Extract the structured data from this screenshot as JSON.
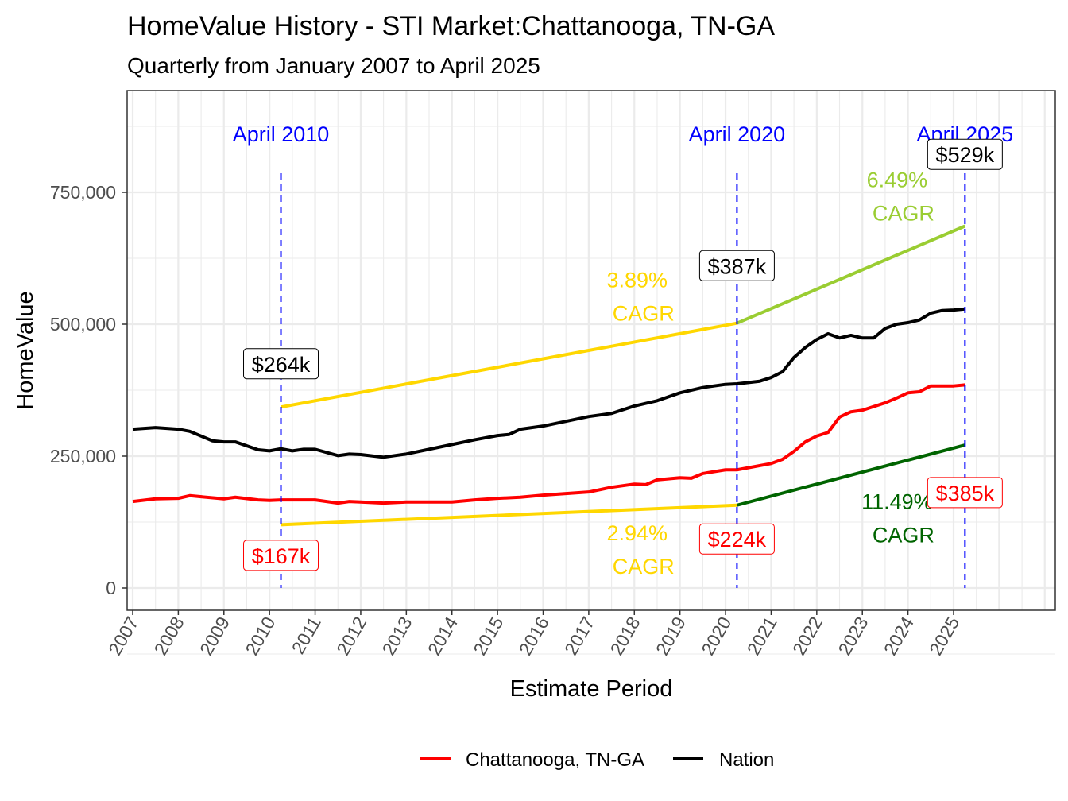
{
  "chart_data": {
    "type": "line",
    "title": "HomeValue History - STI Market:Chattanooga, TN-GA",
    "subtitle": "Quarterly from January 2007 to April 2025",
    "xlabel": "Estimate Period",
    "ylabel": "HomeValue",
    "xlim": [
      2007,
      2027.2
    ],
    "ylim": [
      -40000,
      940000
    ],
    "x_ticks": [
      "2007",
      "2008",
      "2009",
      "2010",
      "2011",
      "2012",
      "2013",
      "2014",
      "2015",
      "2016",
      "2017",
      "2018",
      "2019",
      "2020",
      "2021",
      "2022",
      "2023",
      "2024",
      "2025"
    ],
    "y_ticks": [
      0,
      250000,
      500000,
      750000
    ],
    "y_tick_labels": [
      "0",
      "250,000",
      "500,000",
      "750,000"
    ],
    "grid": true,
    "legend_position": "bottom",
    "series": [
      {
        "name": "Chattanooga, TN-GA",
        "color": "#ff0000",
        "points": [
          [
            2007,
            164000
          ],
          [
            2007.5,
            169000
          ],
          [
            2008,
            170000
          ],
          [
            2008.25,
            175000
          ],
          [
            2009,
            169000
          ],
          [
            2009.25,
            172000
          ],
          [
            2009.75,
            167000
          ],
          [
            2010,
            166000
          ],
          [
            2010.25,
            167000
          ],
          [
            2011,
            167000
          ],
          [
            2011.5,
            161000
          ],
          [
            2011.75,
            164000
          ],
          [
            2012,
            163000
          ],
          [
            2012.5,
            161000
          ],
          [
            2013,
            163000
          ],
          [
            2014,
            163000
          ],
          [
            2014.5,
            167000
          ],
          [
            2015,
            170000
          ],
          [
            2015.5,
            172000
          ],
          [
            2016,
            176000
          ],
          [
            2016.5,
            179000
          ],
          [
            2017,
            182000
          ],
          [
            2017.5,
            191000
          ],
          [
            2018,
            197000
          ],
          [
            2018.25,
            196000
          ],
          [
            2018.5,
            205000
          ],
          [
            2019,
            209000
          ],
          [
            2019.25,
            208000
          ],
          [
            2019.5,
            217000
          ],
          [
            2020,
            224000
          ],
          [
            2020.25,
            224000
          ],
          [
            2021,
            236000
          ],
          [
            2021.25,
            244000
          ],
          [
            2021.5,
            259000
          ],
          [
            2021.75,
            277000
          ],
          [
            2022,
            288000
          ],
          [
            2022.25,
            295000
          ],
          [
            2022.5,
            324000
          ],
          [
            2022.75,
            334000
          ],
          [
            2023,
            337000
          ],
          [
            2023.5,
            351000
          ],
          [
            2023.75,
            360000
          ],
          [
            2024,
            370000
          ],
          [
            2024.25,
            372000
          ],
          [
            2024.5,
            383000
          ],
          [
            2025,
            383000
          ],
          [
            2025.25,
            385000
          ]
        ]
      },
      {
        "name": "Nation",
        "color": "#000000",
        "points": [
          [
            2007,
            301000
          ],
          [
            2007.5,
            304000
          ],
          [
            2008,
            301000
          ],
          [
            2008.25,
            297000
          ],
          [
            2008.75,
            279000
          ],
          [
            2009,
            277000
          ],
          [
            2009.25,
            277000
          ],
          [
            2009.75,
            262000
          ],
          [
            2010,
            260000
          ],
          [
            2010.25,
            264000
          ],
          [
            2010.5,
            260000
          ],
          [
            2010.75,
            263000
          ],
          [
            2011,
            263000
          ],
          [
            2011.5,
            251000
          ],
          [
            2011.75,
            254000
          ],
          [
            2012,
            253000
          ],
          [
            2012.5,
            248000
          ],
          [
            2013,
            254000
          ],
          [
            2013.5,
            263000
          ],
          [
            2014,
            272000
          ],
          [
            2014.5,
            281000
          ],
          [
            2015,
            289000
          ],
          [
            2015.25,
            291000
          ],
          [
            2015.5,
            301000
          ],
          [
            2016,
            307000
          ],
          [
            2016.5,
            316000
          ],
          [
            2017,
            325000
          ],
          [
            2017.5,
            331000
          ],
          [
            2018,
            345000
          ],
          [
            2018.5,
            355000
          ],
          [
            2019,
            370000
          ],
          [
            2019.5,
            380000
          ],
          [
            2020,
            386000
          ],
          [
            2020.25,
            387000
          ],
          [
            2020.75,
            392000
          ],
          [
            2021,
            399000
          ],
          [
            2021.25,
            410000
          ],
          [
            2021.5,
            437000
          ],
          [
            2021.75,
            456000
          ],
          [
            2022,
            471000
          ],
          [
            2022.25,
            482000
          ],
          [
            2022.5,
            474000
          ],
          [
            2022.75,
            479000
          ],
          [
            2023,
            474000
          ],
          [
            2023.25,
            474000
          ],
          [
            2023.5,
            492000
          ],
          [
            2023.75,
            500000
          ],
          [
            2024,
            503000
          ],
          [
            2024.25,
            508000
          ],
          [
            2024.5,
            521000
          ],
          [
            2024.75,
            526000
          ],
          [
            2025,
            527000
          ],
          [
            2025.25,
            529000
          ]
        ]
      }
    ],
    "cagr_lines": [
      {
        "color": "#ffd700",
        "points": [
          [
            2010.25,
            343000
          ],
          [
            2020.25,
            502000
          ]
        ],
        "label": "3.89%",
        "sub": "CAGR",
        "at": [
          2018.2,
          570000
        ]
      },
      {
        "color": "#9acd32",
        "points": [
          [
            2020.25,
            502000
          ],
          [
            2025.25,
            686000
          ]
        ],
        "label": "6.49%",
        "sub": "CAGR",
        "at": [
          2023.9,
          760000
        ]
      },
      {
        "color": "#ffd700",
        "points": [
          [
            2010.25,
            120000
          ],
          [
            2020.25,
            157000
          ]
        ],
        "label": "2.94%",
        "sub": "CAGR",
        "at": [
          2018.2,
          90000
        ]
      },
      {
        "color": "#006400",
        "points": [
          [
            2020.25,
            157000
          ],
          [
            2025.25,
            271000
          ]
        ],
        "label": "11.49%",
        "sub": "CAGR",
        "at": [
          2023.9,
          150000
        ]
      }
    ],
    "markers": [
      {
        "x": 2010.25,
        "label": "April 2010",
        "nation_label": "$264k",
        "local_label": "$167k",
        "nation_y": 425000,
        "local_y": 62000
      },
      {
        "x": 2020.25,
        "label": "April 2020",
        "nation_label": "$387k",
        "local_label": "$224k",
        "nation_y": 611000,
        "local_y": 93000
      },
      {
        "x": 2025.25,
        "label": "April 2025",
        "nation_label": "$529k",
        "local_label": "$385k",
        "nation_y": 822000,
        "local_y": 181000
      }
    ],
    "marker_color": "#0000ff"
  }
}
